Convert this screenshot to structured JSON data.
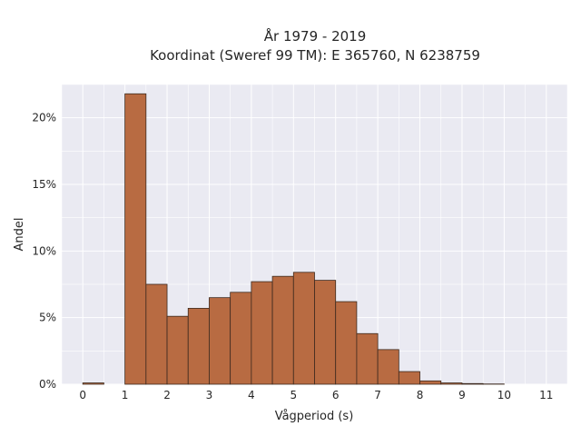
{
  "chart_data": {
    "type": "bar",
    "title": "År 1979 - 2019",
    "subtitle": "Koordinat (Sweref 99 TM): E 365760, N 6238759",
    "xlabel": "Vågperiod (s)",
    "ylabel": "Andel",
    "bin_width": 0.5,
    "bins": [
      {
        "start": 0.0,
        "value": 0.1
      },
      {
        "start": 0.5,
        "value": 0.0
      },
      {
        "start": 1.0,
        "value": 21.8
      },
      {
        "start": 1.5,
        "value": 7.5
      },
      {
        "start": 2.0,
        "value": 5.1
      },
      {
        "start": 2.5,
        "value": 5.7
      },
      {
        "start": 3.0,
        "value": 6.5
      },
      {
        "start": 3.5,
        "value": 6.9
      },
      {
        "start": 4.0,
        "value": 7.7
      },
      {
        "start": 4.5,
        "value": 8.1
      },
      {
        "start": 5.0,
        "value": 8.4
      },
      {
        "start": 5.5,
        "value": 7.8
      },
      {
        "start": 6.0,
        "value": 6.2
      },
      {
        "start": 6.5,
        "value": 3.8
      },
      {
        "start": 7.0,
        "value": 2.6
      },
      {
        "start": 7.5,
        "value": 0.95
      },
      {
        "start": 8.0,
        "value": 0.25
      },
      {
        "start": 8.5,
        "value": 0.1
      },
      {
        "start": 9.0,
        "value": 0.05
      },
      {
        "start": 9.5,
        "value": 0.02
      },
      {
        "start": 10.0,
        "value": 0.0
      },
      {
        "start": 10.5,
        "value": 0.0
      }
    ],
    "xlim": [
      -0.5,
      11.5
    ],
    "ylim": [
      0,
      22.5
    ],
    "xticks": [
      0,
      1,
      2,
      3,
      4,
      5,
      6,
      7,
      8,
      9,
      10,
      11
    ],
    "yticks": [
      {
        "value": 0,
        "label": "0%"
      },
      {
        "value": 5,
        "label": "5%"
      },
      {
        "value": 10,
        "label": "10%"
      },
      {
        "value": 15,
        "label": "15%"
      },
      {
        "value": 20,
        "label": "20%"
      }
    ],
    "grid": true,
    "colors": {
      "plot_background": "#eaeaf2",
      "grid": "#ffffff",
      "bar_fill": "#b86b42",
      "bar_edge": "#3d2a1f"
    }
  }
}
